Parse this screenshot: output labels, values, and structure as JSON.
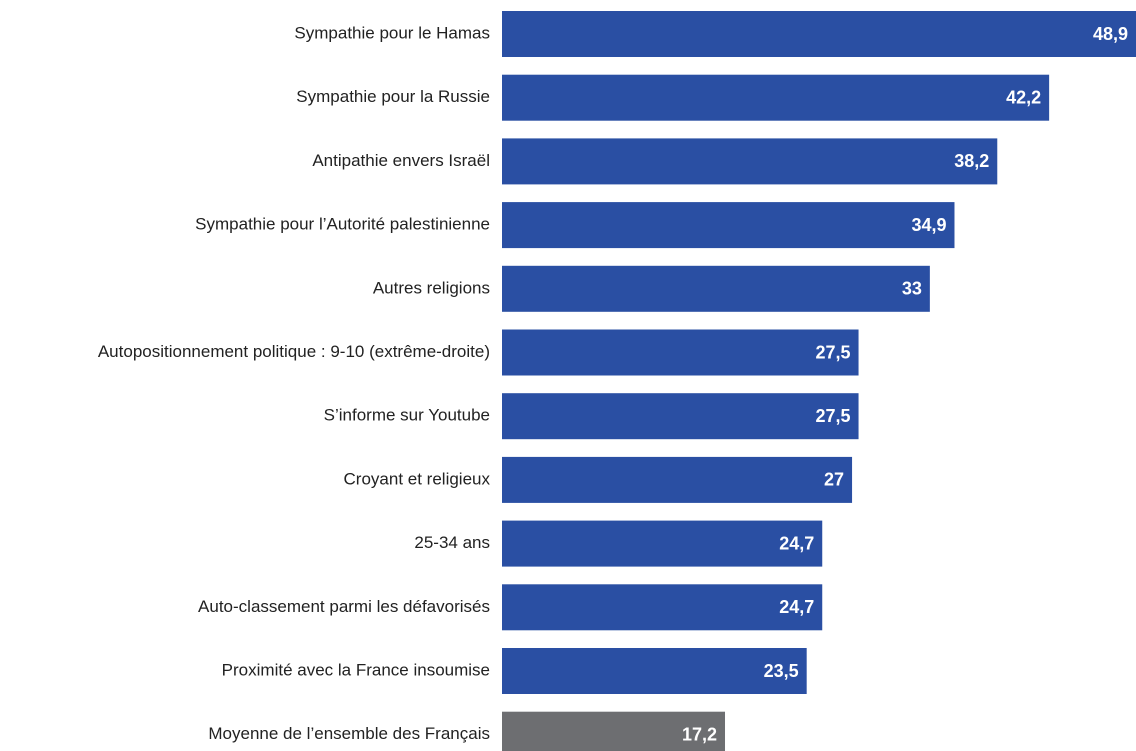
{
  "chart_data": {
    "type": "barh",
    "categories": [
      "Sympathie pour le Hamas",
      "Sympathie pour la Russie",
      "Antipathie envers Israël",
      "Sympathie pour l’Autorité palestinienne",
      "Autres religions",
      "Autopositionnement politique : 9-10 (extrême-droite)",
      "S’informe sur Youtube",
      "Croyant et religieux",
      "25-34 ans",
      "Auto-classement parmi les défavorisés",
      "Proximité avec la France insoumise",
      "Moyenne de l’ensemble des Français"
    ],
    "values": [
      48.9,
      42.2,
      38.2,
      34.9,
      33,
      27.5,
      27.5,
      27,
      24.7,
      24.7,
      23.5,
      17.2
    ],
    "value_labels": [
      "48,9",
      "42,2",
      "38,2",
      "34,9",
      "33",
      "27,5",
      "27,5",
      "27",
      "24,7",
      "24,7",
      "23,5",
      "17,2"
    ],
    "colors": [
      "#2a4fa3",
      "#2a4fa3",
      "#2a4fa3",
      "#2a4fa3",
      "#2a4fa3",
      "#2a4fa3",
      "#2a4fa3",
      "#2a4fa3",
      "#2a4fa3",
      "#2a4fa3",
      "#2a4fa3",
      "#6d6e71"
    ]
  }
}
